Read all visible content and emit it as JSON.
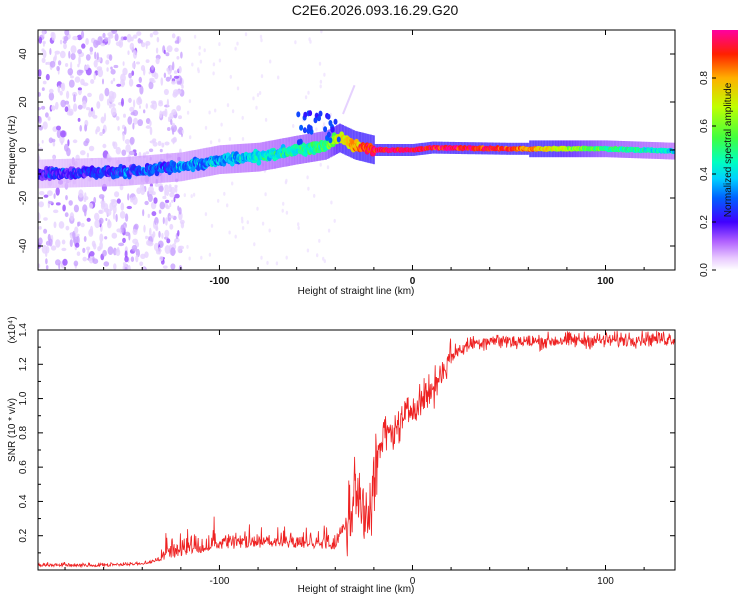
{
  "title": "C2E6.2026.093.16.29.G20",
  "chart_data": [
    {
      "type": "heatmap",
      "title": "C2E6.2026.093.16.29.G20",
      "xlabel": "Height of straight line (km)",
      "ylabel": "Frequency (Hz)",
      "xlim": [
        -194,
        136
      ],
      "ylim": [
        -50,
        50
      ],
      "xticks": [
        -100,
        0,
        100
      ],
      "yticks": [
        -40,
        -20,
        0,
        20,
        40
      ],
      "colorbar": {
        "label": "Normalized spectral amplitude",
        "range": [
          0,
          1
        ],
        "ticks": [
          "0.0",
          "0.2",
          "0.4",
          "0.6",
          "0.8"
        ]
      },
      "ridge": {
        "x": [
          -194,
          -150,
          -120,
          -100,
          -80,
          -60,
          -45,
          -38,
          -30,
          -20,
          0,
          10,
          50,
          100,
          136
        ],
        "freq": [
          -10,
          -9,
          -7,
          -4,
          -3,
          0,
          2,
          5,
          2,
          0,
          0,
          1,
          0.5,
          0.5,
          -0.5
        ],
        "amplitude": [
          0.2,
          0.25,
          0.3,
          0.35,
          0.4,
          0.45,
          0.5,
          0.7,
          0.8,
          0.95,
          0.95,
          0.95,
          0.9,
          0.5,
          0.4
        ]
      }
    },
    {
      "type": "line",
      "xlabel": "Height of straight line (km)",
      "ylabel": "SNR (10 * v/v)",
      "yscale_label": "(x10⁴)",
      "xlim": [
        -194,
        136
      ],
      "ylim": [
        0,
        14000
      ],
      "xticks": [
        -100,
        0,
        100
      ],
      "yticks": [
        2000,
        4000,
        6000,
        8000,
        10000,
        12000,
        14000
      ],
      "ytick_labels": [
        "0.2",
        "0.4",
        "0.6",
        "0.8",
        "1.0",
        "1.2",
        "1.4"
      ],
      "series": [
        {
          "name": "SNR",
          "color": "#ee2222",
          "x": [
            -194,
            -160,
            -140,
            -120,
            -100,
            -80,
            -60,
            -40,
            -34,
            -30,
            -25,
            -22,
            -15,
            -10,
            0,
            10,
            20,
            30,
            40,
            60,
            80,
            100,
            120,
            136
          ],
          "y": [
            200,
            200,
            300,
            800,
            1200,
            1300,
            1300,
            1200,
            2500,
            4500,
            3500,
            4000,
            8000,
            8000,
            9500,
            10500,
            12500,
            13200,
            13400,
            13300,
            13400,
            13400,
            13500,
            13500
          ]
        }
      ]
    }
  ]
}
